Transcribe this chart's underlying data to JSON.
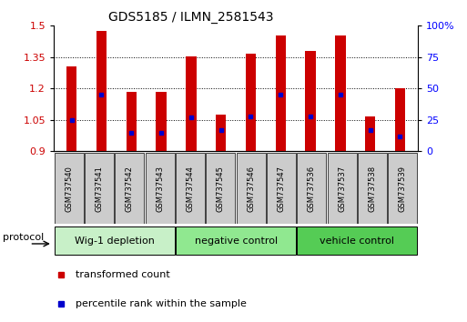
{
  "title": "GDS5185 / ILMN_2581543",
  "samples": [
    "GSM737540",
    "GSM737541",
    "GSM737542",
    "GSM737543",
    "GSM737544",
    "GSM737545",
    "GSM737546",
    "GSM737547",
    "GSM737536",
    "GSM737537",
    "GSM737538",
    "GSM737539"
  ],
  "transformed_counts": [
    1.305,
    1.475,
    1.185,
    1.185,
    1.355,
    1.075,
    1.365,
    1.455,
    1.38,
    1.455,
    1.065,
    1.2
  ],
  "percentile_ranks": [
    25,
    45,
    15,
    15,
    27,
    17,
    28,
    45,
    28,
    45,
    17,
    12
  ],
  "bar_bottom": 0.9,
  "ylim_left": [
    0.9,
    1.5
  ],
  "ylim_right": [
    0,
    100
  ],
  "yticks_left": [
    0.9,
    1.05,
    1.2,
    1.35,
    1.5
  ],
  "yticks_right": [
    0,
    25,
    50,
    75,
    100
  ],
  "ytick_right_labels": [
    "0",
    "25",
    "50",
    "75",
    "100%"
  ],
  "groups": [
    {
      "label": "Wig-1 depletion",
      "start": 0,
      "end": 4,
      "color": "#c8f0c8"
    },
    {
      "label": "negative control",
      "start": 4,
      "end": 8,
      "color": "#90e890"
    },
    {
      "label": "vehicle control",
      "start": 8,
      "end": 12,
      "color": "#55cc55"
    }
  ],
  "bar_color": "#cc0000",
  "percentile_color": "#0000cc",
  "bar_width": 0.35,
  "protocol_label": "protocol",
  "legend_items": [
    {
      "label": "transformed count",
      "color": "#cc0000"
    },
    {
      "label": "percentile rank within the sample",
      "color": "#0000cc"
    }
  ],
  "sample_box_color": "#cccccc",
  "grid_yticks": [
    1.05,
    1.2,
    1.35
  ]
}
